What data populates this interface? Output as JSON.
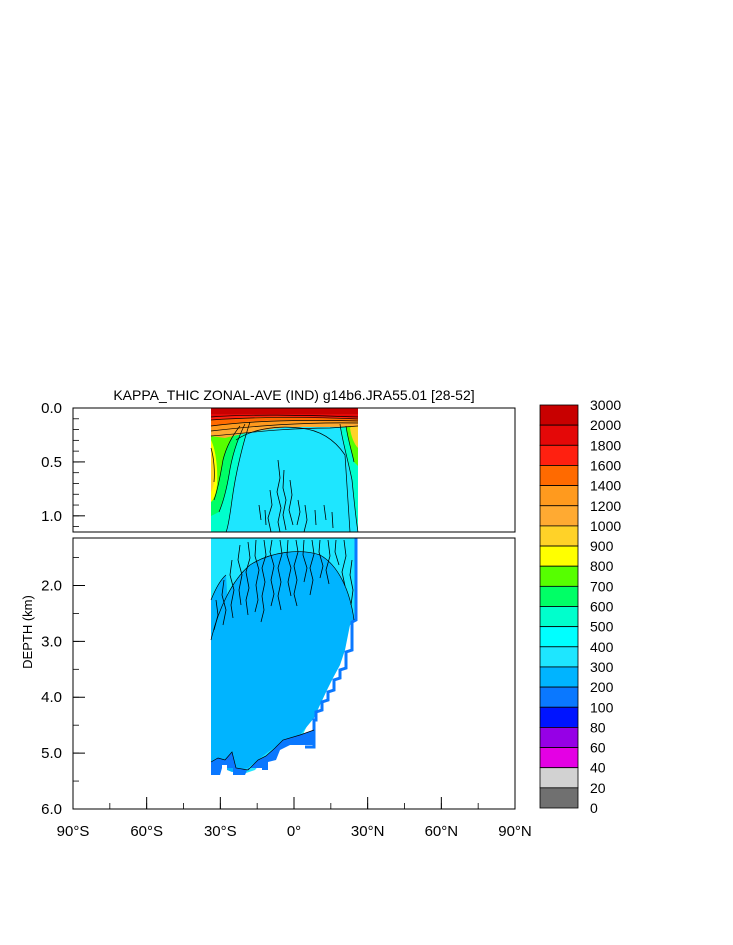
{
  "chart_data": {
    "type": "heatmap",
    "title": "KAPPA_THIC ZONAL-AVE (IND) g14b6.JRA55.01 [28-52]",
    "ylabel": "DEPTH (km)",
    "xlabel": "",
    "xlim": [
      -90,
      90
    ],
    "x_ticks": [
      {
        "value": -90,
        "label": "90°S"
      },
      {
        "value": -60,
        "label": "60°S"
      },
      {
        "value": -30,
        "label": "30°S"
      },
      {
        "value": 0,
        "label": "0°"
      },
      {
        "value": 30,
        "label": "30°N"
      },
      {
        "value": 60,
        "label": "60°N"
      },
      {
        "value": 90,
        "label": "90°N"
      }
    ],
    "upper_panel": {
      "ylim": [
        0,
        1.15
      ],
      "y_ticks": [
        {
          "value": 0,
          "label": "0.0"
        },
        {
          "value": 0.5,
          "label": "0.5"
        },
        {
          "value": 1.0,
          "label": "1.0"
        }
      ]
    },
    "lower_panel": {
      "ylim": [
        1.15,
        6.0
      ],
      "y_ticks": [
        {
          "value": 2,
          "label": "2.0"
        },
        {
          "value": 3,
          "label": "3.0"
        },
        {
          "value": 4,
          "label": "4.0"
        },
        {
          "value": 5,
          "label": "5.0"
        },
        {
          "value": 6,
          "label": "6.0"
        }
      ]
    },
    "data_extent": {
      "lat_min": -33.7,
      "lat_max": 26.5,
      "max_depth_km": 5.4
    },
    "colorbar": {
      "levels": [
        "3000",
        "2000",
        "1800",
        "1600",
        "1400",
        "1200",
        "1000",
        "900",
        "800",
        "700",
        "600",
        "500",
        "400",
        "300",
        "200",
        "100",
        "80",
        "60",
        "40",
        "20",
        "0"
      ],
      "colors": [
        "#c80000",
        "#e40808",
        "#ff2010",
        "#ff6a00",
        "#ff9a1e",
        "#ffaa32",
        "#ffd228",
        "#ffff00",
        "#56ff00",
        "#00ff66",
        "#00ffcc",
        "#00ffff",
        "#1ee6ff",
        "#00b4ff",
        "#0a78ff",
        "#0014ff",
        "#9600e6",
        "#e400e4",
        "#d2d2d2",
        "#707070"
      ]
    },
    "regions": [
      {
        "level": "2000-3000",
        "depth_km": [
          0.0,
          0.04
        ],
        "lat": [
          -33.7,
          26.5
        ]
      },
      {
        "level": "1000-2000 bands",
        "depth_km": [
          0.04,
          0.25
        ],
        "lat": [
          -33.7,
          26.5
        ]
      },
      {
        "level": "600-900",
        "depth_km": [
          0.1,
          1.0
        ],
        "lat": [
          -33.7,
          -25
        ]
      },
      {
        "level": "400-500",
        "depth_km": [
          0.2,
          1.9
        ],
        "lat": [
          -30,
          26.5
        ]
      },
      {
        "level": "300-400",
        "depth_km": [
          0.8,
          5.4
        ],
        "lat": [
          -33.7,
          26.5
        ]
      },
      {
        "level": "200-300",
        "depth_km": [
          4.6,
          5.4
        ],
        "lat": [
          -33.7,
          0
        ]
      }
    ]
  }
}
